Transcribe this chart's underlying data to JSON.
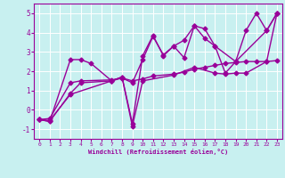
{
  "bg_color": "#c8f0f0",
  "grid_color": "#b0d8d8",
  "line_color": "#990099",
  "xlabel": "Windchill (Refroidissement éolien,°C)",
  "xlim": [
    -0.5,
    23.5
  ],
  "ylim": [
    -1.5,
    5.5
  ],
  "yticks": [
    -1,
    0,
    1,
    2,
    3,
    4,
    5
  ],
  "xticks": [
    0,
    1,
    2,
    3,
    4,
    5,
    6,
    7,
    8,
    9,
    10,
    11,
    12,
    13,
    14,
    15,
    16,
    17,
    18,
    19,
    20,
    21,
    22,
    23
  ],
  "series": [
    {
      "x": [
        0,
        1,
        3,
        4,
        5,
        7,
        8,
        9,
        10,
        11,
        12,
        13,
        14,
        15,
        16,
        17,
        19,
        20,
        21,
        22,
        23
      ],
      "y": [
        -0.5,
        -0.6,
        2.6,
        2.6,
        2.4,
        1.5,
        1.7,
        -0.7,
        2.8,
        3.85,
        2.8,
        3.3,
        2.7,
        4.35,
        4.2,
        3.3,
        2.5,
        4.1,
        5.0,
        4.1,
        5.0
      ]
    },
    {
      "x": [
        0,
        1,
        3,
        4,
        7,
        8,
        9,
        10,
        11,
        12,
        13,
        14,
        15,
        16,
        17,
        18,
        19,
        22,
        23
      ],
      "y": [
        -0.5,
        -0.6,
        0.85,
        1.4,
        1.5,
        1.65,
        1.4,
        2.6,
        3.8,
        2.85,
        3.3,
        3.6,
        4.35,
        3.7,
        3.3,
        1.9,
        2.5,
        4.1,
        5.0
      ]
    },
    {
      "x": [
        0,
        1,
        3,
        4,
        7,
        8,
        9,
        10,
        11,
        13,
        14,
        15,
        16,
        17,
        18,
        19,
        20,
        21,
        22,
        23
      ],
      "y": [
        -0.5,
        -0.45,
        1.4,
        1.5,
        1.55,
        1.65,
        1.5,
        1.6,
        1.75,
        1.85,
        1.95,
        2.1,
        2.2,
        2.3,
        2.4,
        2.45,
        2.5,
        2.5,
        2.5,
        2.55
      ]
    },
    {
      "x": [
        0,
        1,
        3,
        7,
        8,
        9,
        10,
        13,
        15,
        17,
        18,
        19,
        20,
        22,
        23
      ],
      "y": [
        -0.5,
        -0.55,
        0.8,
        1.5,
        1.7,
        -0.85,
        1.5,
        1.8,
        2.2,
        1.9,
        1.85,
        1.9,
        1.9,
        2.5,
        5.0
      ]
    }
  ],
  "marker": "D",
  "markersize": 2.5,
  "linewidth": 1.0
}
